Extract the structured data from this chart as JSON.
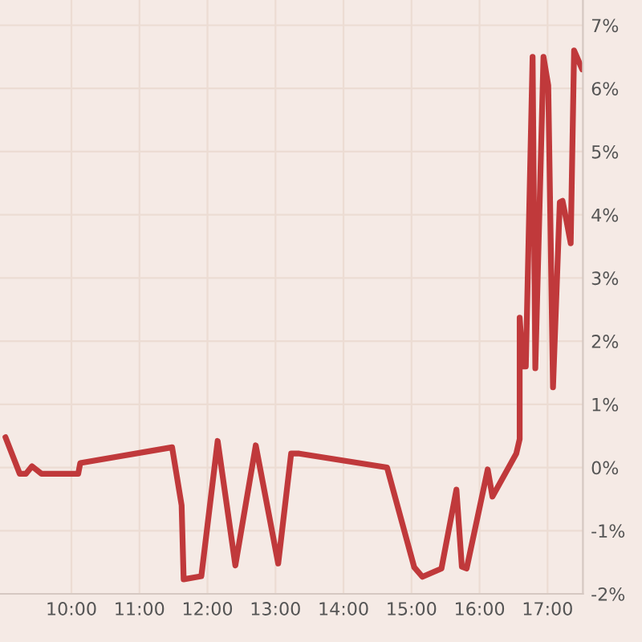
{
  "chart_data": {
    "type": "line",
    "xlim": [
      8.95,
      17.52
    ],
    "ylim": [
      -2,
      7.4
    ],
    "xticks": [
      {
        "value": 10,
        "label": "10:00"
      },
      {
        "value": 11,
        "label": "11:00"
      },
      {
        "value": 12,
        "label": "12:00"
      },
      {
        "value": 13,
        "label": "13:00"
      },
      {
        "value": 14,
        "label": "14:00"
      },
      {
        "value": 15,
        "label": "15:00"
      },
      {
        "value": 16,
        "label": "16:00"
      },
      {
        "value": 17,
        "label": "17:00"
      }
    ],
    "yticks": [
      {
        "value": -2,
        "label": "-2%"
      },
      {
        "value": -1,
        "label": "-1%"
      },
      {
        "value": 0,
        "label": "0%"
      },
      {
        "value": 1,
        "label": "1%"
      },
      {
        "value": 2,
        "label": "2%"
      },
      {
        "value": 3,
        "label": "3%"
      },
      {
        "value": 4,
        "label": "4%"
      },
      {
        "value": 5,
        "label": "5%"
      },
      {
        "value": 6,
        "label": "6%"
      },
      {
        "value": 7,
        "label": "7%"
      }
    ],
    "grid": true,
    "legend": false,
    "marker": "none",
    "line_style": "solid",
    "series": [
      {
        "color": "#c0393b",
        "x": [
          9.03,
          9.24,
          9.33,
          9.42,
          9.56,
          10.1,
          10.13,
          11.48,
          11.62,
          11.65,
          11.91,
          12.15,
          12.41,
          12.71,
          13.04,
          13.23,
          13.35,
          14.64,
          15.04,
          15.16,
          15.44,
          15.66,
          15.74,
          15.81,
          16.12,
          16.19,
          16.54,
          16.59,
          16.59,
          16.64,
          16.68,
          16.78,
          16.82,
          16.94,
          17.01,
          17.08,
          17.18,
          17.22,
          17.27,
          17.34,
          17.39,
          17.51
        ],
        "values": [
          0.48,
          -0.1,
          -0.1,
          0.02,
          -0.1,
          -0.1,
          0.07,
          0.32,
          -0.6,
          -1.77,
          -1.72,
          0.42,
          -1.55,
          0.35,
          -1.52,
          0.22,
          0.22,
          0.0,
          -1.58,
          -1.73,
          -1.6,
          -0.35,
          -1.57,
          -1.6,
          -0.03,
          -0.46,
          0.22,
          0.45,
          2.37,
          1.6,
          1.6,
          6.5,
          1.57,
          6.5,
          6.05,
          1.27,
          4.2,
          4.22,
          3.95,
          3.55,
          6.6,
          6.3
        ]
      }
    ]
  }
}
